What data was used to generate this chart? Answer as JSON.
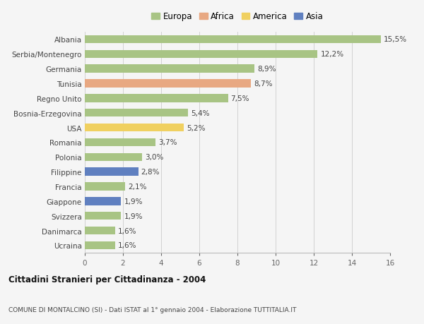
{
  "countries": [
    "Albania",
    "Serbia/Montenegro",
    "Germania",
    "Tunisia",
    "Regno Unito",
    "Bosnia-Erzegovina",
    "USA",
    "Romania",
    "Polonia",
    "Filippine",
    "Francia",
    "Giappone",
    "Svizzera",
    "Danimarca",
    "Ucraina"
  ],
  "values": [
    15.5,
    12.2,
    8.9,
    8.7,
    7.5,
    5.4,
    5.2,
    3.7,
    3.0,
    2.8,
    2.1,
    1.9,
    1.9,
    1.6,
    1.6
  ],
  "labels": [
    "15,5%",
    "12,2%",
    "8,9%",
    "8,7%",
    "7,5%",
    "5,4%",
    "5,2%",
    "3,7%",
    "3,0%",
    "2,8%",
    "2,1%",
    "1,9%",
    "1,9%",
    "1,6%",
    "1,6%"
  ],
  "continents": [
    "Europa",
    "Europa",
    "Europa",
    "Africa",
    "Europa",
    "Europa",
    "America",
    "Europa",
    "Europa",
    "Asia",
    "Europa",
    "Asia",
    "Europa",
    "Europa",
    "Europa"
  ],
  "colors": {
    "Europa": "#a8c484",
    "Africa": "#e8a882",
    "America": "#f0d060",
    "Asia": "#6080c0"
  },
  "legend_order": [
    "Europa",
    "Africa",
    "America",
    "Asia"
  ],
  "title_bold": "Cittadini Stranieri per Cittadinanza - 2004",
  "subtitle": "COMUNE DI MONTALCINO (SI) - Dati ISTAT al 1° gennaio 2004 - Elaborazione TUTTITALIA.IT",
  "xlim": [
    0,
    16
  ],
  "xticks": [
    0,
    2,
    4,
    6,
    8,
    10,
    12,
    14,
    16
  ],
  "bg_color": "#f5f5f5",
  "bar_height": 0.55
}
